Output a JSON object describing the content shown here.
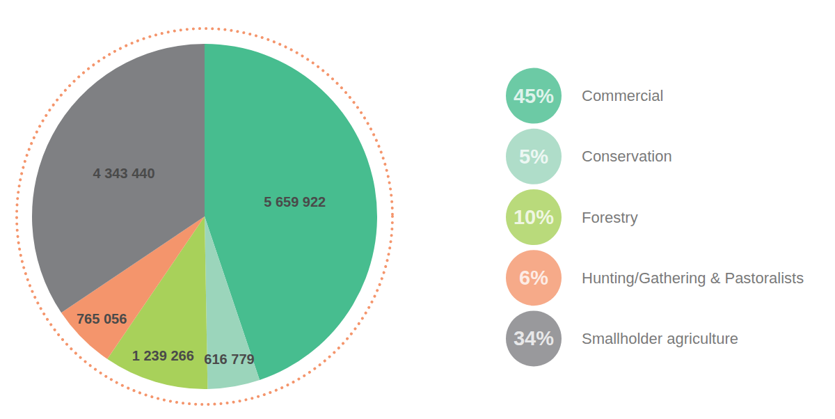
{
  "chart_data": {
    "type": "pie",
    "categories": [
      "Commercial",
      "Conservation",
      "Forestry",
      "Hunting/Gathering & Pastoralists",
      "Smallholder agriculture"
    ],
    "values": [
      5659922,
      616779,
      1239266,
      765056,
      4343440
    ],
    "value_labels": [
      "5 659 922",
      "616 779",
      "1 239 266",
      "765 056",
      "4 343 440"
    ],
    "percentages": [
      {
        "value": 45,
        "label": "45%"
      },
      {
        "value": 5,
        "label": "5%"
      },
      {
        "value": 10,
        "label": "10%"
      },
      {
        "value": 6,
        "label": "6%"
      },
      {
        "value": 34,
        "label": "34%"
      }
    ],
    "colors": [
      "#47bd8f",
      "#9bd5bb",
      "#a8d15a",
      "#f4956c",
      "#7f8083"
    ],
    "data_labels": true,
    "legend": "right"
  }
}
